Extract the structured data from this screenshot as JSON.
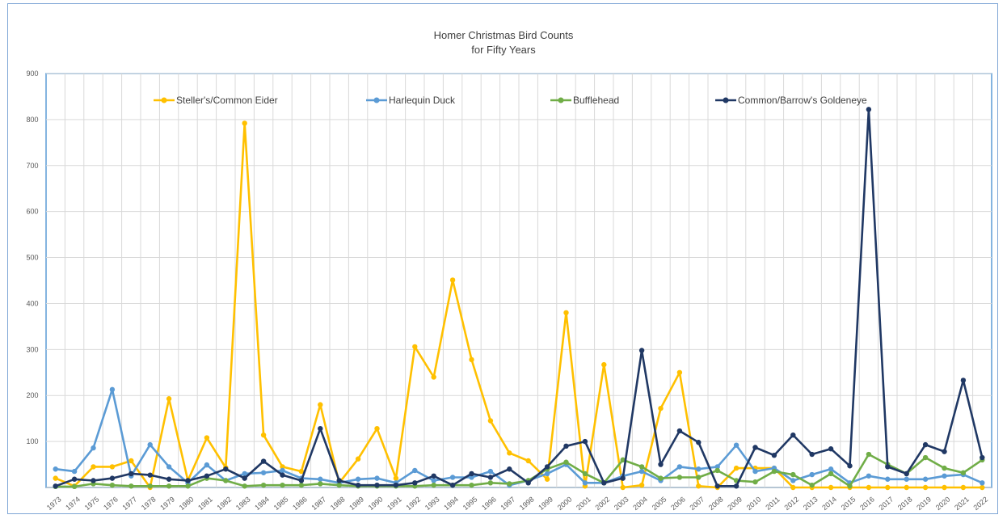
{
  "chart_data": {
    "type": "line",
    "title": "Homer Christmas Bird Counts",
    "subtitle": "for Fifty Years",
    "xlabel": "",
    "ylabel": "",
    "ylim": [
      0,
      900
    ],
    "yticks": [
      900,
      800,
      700,
      600,
      500,
      400,
      300,
      200,
      100
    ],
    "grid": true,
    "legend_position": "top-inside",
    "categories": [
      "1973",
      "1974",
      "1975",
      "1976",
      "1977",
      "1978",
      "1979",
      "1980",
      "1981",
      "1982",
      "1983",
      "1984",
      "1985",
      "1986",
      "1987",
      "1988",
      "1989",
      "1990",
      "1991",
      "1992",
      "1993",
      "1994",
      "1995",
      "1996",
      "1997",
      "1998",
      "1999",
      "2000",
      "2001",
      "2002",
      "2003",
      "2004",
      "2005",
      "2006",
      "2007",
      "2008",
      "2009",
      "2010",
      "2011",
      "2012",
      "2013",
      "2014",
      "2015",
      "2016",
      "2017",
      "2018",
      "2019",
      "2020",
      "2021",
      "2022"
    ],
    "series": [
      {
        "name": "Steller's/Common Eider",
        "color": "#ffc000",
        "values": [
          20,
          3,
          45,
          45,
          58,
          0,
          193,
          15,
          108,
          43,
          792,
          114,
          45,
          35,
          180,
          10,
          62,
          128,
          20,
          306,
          240,
          451,
          278,
          145,
          75,
          58,
          18,
          380,
          3,
          267,
          0,
          5,
          172,
          250,
          3,
          0,
          42,
          42,
          42,
          0,
          0,
          0,
          0,
          0,
          0,
          0,
          0,
          0,
          0,
          0
        ]
      },
      {
        "name": "Harlequin Duck",
        "color": "#5b9bd5",
        "values": [
          40,
          35,
          86,
          213,
          25,
          93,
          45,
          10,
          49,
          15,
          30,
          32,
          37,
          20,
          18,
          10,
          18,
          20,
          10,
          37,
          15,
          22,
          22,
          35,
          5,
          15,
          30,
          50,
          10,
          10,
          25,
          35,
          15,
          45,
          40,
          45,
          92,
          35,
          42,
          15,
          28,
          40,
          10,
          25,
          18,
          18,
          18,
          25,
          28,
          10
        ]
      },
      {
        "name": "Bufflehead",
        "color": "#70ad47",
        "values": [
          2,
          2,
          8,
          5,
          3,
          3,
          3,
          3,
          20,
          15,
          3,
          5,
          5,
          5,
          8,
          5,
          3,
          3,
          3,
          3,
          5,
          5,
          5,
          10,
          8,
          15,
          40,
          55,
          30,
          10,
          60,
          45,
          20,
          22,
          22,
          37,
          15,
          12,
          35,
          28,
          5,
          30,
          3,
          72,
          50,
          30,
          65,
          42,
          32,
          60
        ]
      },
      {
        "name": "Common/Barrow's Goldeneye",
        "color": "#203864",
        "values": [
          3,
          18,
          15,
          20,
          30,
          27,
          18,
          15,
          25,
          40,
          20,
          57,
          27,
          15,
          128,
          15,
          5,
          5,
          5,
          10,
          25,
          5,
          30,
          22,
          40,
          10,
          45,
          90,
          100,
          10,
          20,
          298,
          50,
          123,
          98,
          3,
          3,
          87,
          70,
          114,
          72,
          84,
          47,
          822,
          45,
          30,
          93,
          78,
          233,
          65
        ]
      }
    ]
  }
}
